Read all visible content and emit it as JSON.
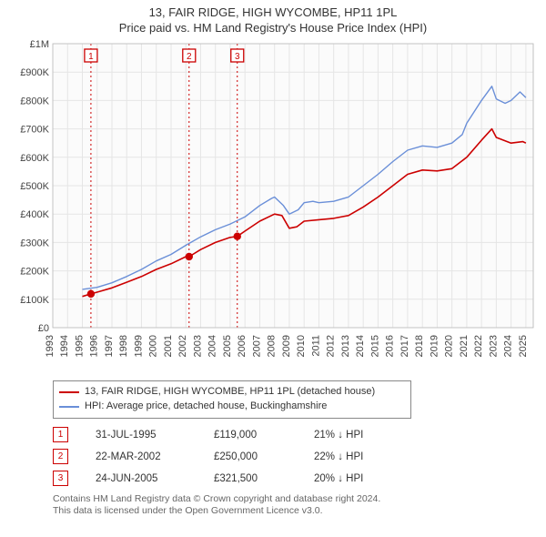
{
  "title_line1": "13, FAIR RIDGE, HIGH WYCOMBE, HP11 1PL",
  "title_line2": "Price paid vs. HM Land Registry's House Price Index (HPI)",
  "chart": {
    "type": "line",
    "plot_background": "#fbfbfb",
    "grid_color": "#e5e5e5",
    "x_years": [
      1993,
      1994,
      1995,
      1996,
      1997,
      1998,
      1999,
      2000,
      2001,
      2002,
      2003,
      2004,
      2005,
      2006,
      2007,
      2008,
      2009,
      2010,
      2011,
      2012,
      2013,
      2014,
      2015,
      2016,
      2017,
      2018,
      2019,
      2020,
      2021,
      2022,
      2023,
      2024,
      2025
    ],
    "y_ticks": [
      0,
      100000,
      200000,
      300000,
      400000,
      500000,
      600000,
      700000,
      800000,
      900000,
      1000000
    ],
    "y_tick_labels": [
      "£0",
      "£100K",
      "£200K",
      "£300K",
      "£400K",
      "£500K",
      "£600K",
      "£700K",
      "£800K",
      "£900K",
      "£1M"
    ],
    "ylim": [
      0,
      1000000
    ],
    "xlim": [
      1993,
      2025.5
    ],
    "series": [
      {
        "name": "property",
        "label": "13, FAIR RIDGE, HIGH WYCOMBE, HP11 1PL (detached house)",
        "color": "#cc0000",
        "width": 1.6,
        "data": [
          [
            1995.0,
            110000
          ],
          [
            1995.58,
            119000
          ],
          [
            1996,
            125000
          ],
          [
            1997,
            140000
          ],
          [
            1998,
            160000
          ],
          [
            1999,
            180000
          ],
          [
            2000,
            205000
          ],
          [
            2001,
            225000
          ],
          [
            2002,
            250000
          ],
          [
            2002.22,
            250000
          ],
          [
            2003,
            275000
          ],
          [
            2004,
            300000
          ],
          [
            2005,
            318000
          ],
          [
            2005.48,
            321500
          ],
          [
            2006,
            340000
          ],
          [
            2007,
            375000
          ],
          [
            2008,
            400000
          ],
          [
            2008.5,
            395000
          ],
          [
            2009,
            350000
          ],
          [
            2009.5,
            355000
          ],
          [
            2010,
            375000
          ],
          [
            2011,
            380000
          ],
          [
            2012,
            385000
          ],
          [
            2013,
            395000
          ],
          [
            2014,
            425000
          ],
          [
            2015,
            460000
          ],
          [
            2016,
            500000
          ],
          [
            2017,
            540000
          ],
          [
            2018,
            555000
          ],
          [
            2019,
            552000
          ],
          [
            2020,
            560000
          ],
          [
            2021,
            600000
          ],
          [
            2022,
            660000
          ],
          [
            2022.7,
            700000
          ],
          [
            2023,
            670000
          ],
          [
            2024,
            650000
          ],
          [
            2024.8,
            655000
          ],
          [
            2025.0,
            650000
          ]
        ]
      },
      {
        "name": "hpi",
        "label": "HPI: Average price, detached house, Buckinghamshire",
        "color": "#6a8fd8",
        "width": 1.4,
        "data": [
          [
            1995.0,
            135000
          ],
          [
            1996,
            142000
          ],
          [
            1997,
            158000
          ],
          [
            1998,
            180000
          ],
          [
            1999,
            205000
          ],
          [
            2000,
            235000
          ],
          [
            2001,
            258000
          ],
          [
            2002,
            290000
          ],
          [
            2003,
            320000
          ],
          [
            2004,
            345000
          ],
          [
            2005,
            365000
          ],
          [
            2006,
            390000
          ],
          [
            2007,
            430000
          ],
          [
            2007.8,
            455000
          ],
          [
            2008,
            460000
          ],
          [
            2008.6,
            430000
          ],
          [
            2009,
            400000
          ],
          [
            2009.6,
            415000
          ],
          [
            2010,
            440000
          ],
          [
            2010.6,
            445000
          ],
          [
            2011,
            440000
          ],
          [
            2012,
            445000
          ],
          [
            2013,
            460000
          ],
          [
            2014,
            500000
          ],
          [
            2015,
            540000
          ],
          [
            2016,
            585000
          ],
          [
            2017,
            625000
          ],
          [
            2018,
            640000
          ],
          [
            2019,
            635000
          ],
          [
            2020,
            650000
          ],
          [
            2020.7,
            680000
          ],
          [
            2021,
            720000
          ],
          [
            2022,
            800000
          ],
          [
            2022.7,
            850000
          ],
          [
            2023,
            805000
          ],
          [
            2023.6,
            790000
          ],
          [
            2024,
            800000
          ],
          [
            2024.6,
            830000
          ],
          [
            2025.0,
            810000
          ]
        ]
      }
    ],
    "sale_markers": [
      {
        "n": "1",
        "x": 1995.58,
        "y": 119000
      },
      {
        "n": "2",
        "x": 2002.22,
        "y": 250000
      },
      {
        "n": "3",
        "x": 2005.48,
        "y": 321500
      }
    ],
    "marker_line_color": "#cc0000",
    "marker_dot_color": "#cc0000",
    "marker_box_border": "#cc0000",
    "axis_font_size": 11
  },
  "legend": {
    "items": [
      {
        "color": "#cc0000",
        "label": "13, FAIR RIDGE, HIGH WYCOMBE, HP11 1PL (detached house)"
      },
      {
        "color": "#6a8fd8",
        "label": "HPI: Average price, detached house, Buckinghamshire"
      }
    ]
  },
  "sales": [
    {
      "n": "1",
      "date": "31-JUL-1995",
      "price": "£119,000",
      "diff": "21% ↓ HPI"
    },
    {
      "n": "2",
      "date": "22-MAR-2002",
      "price": "£250,000",
      "diff": "22% ↓ HPI"
    },
    {
      "n": "3",
      "date": "24-JUN-2005",
      "price": "£321,500",
      "diff": "20% ↓ HPI"
    }
  ],
  "footnote_line1": "Contains HM Land Registry data © Crown copyright and database right 2024.",
  "footnote_line2": "This data is licensed under the Open Government Licence v3.0."
}
